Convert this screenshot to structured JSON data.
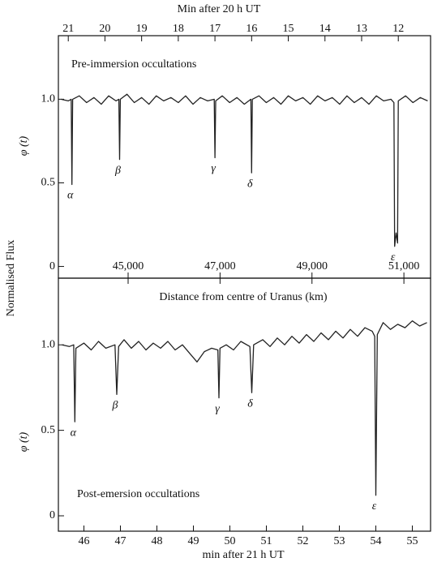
{
  "figure": {
    "ylabel": "Normalised Flux"
  },
  "chart_data": [
    {
      "type": "line",
      "title": "Pre-immersion occultations",
      "xlabel": "Min after 20 h UT",
      "ylabel": "φ (t)",
      "xlim": [
        21.27,
        11.12
      ],
      "xticks": [
        21,
        20,
        19,
        18,
        17,
        16,
        15,
        14,
        13,
        12
      ],
      "x2label": "Distance from centre of Uranus (km)",
      "x2lim": [
        43483,
        51580
      ],
      "x2ticks": [
        {
          "value": 45000,
          "label": "45,000"
        },
        {
          "value": 47000,
          "label": "47,000"
        },
        {
          "value": 49000,
          "label": "49,000"
        },
        {
          "value": 51000,
          "label": "51,000"
        }
      ],
      "ylim": [
        -0.07,
        1.38
      ],
      "yticks": [
        0,
        0.5,
        {
          "value": 1,
          "label": "1.0"
        }
      ],
      "x": [
        21.2,
        21.0,
        20.92,
        20.9,
        20.88,
        20.7,
        20.5,
        20.3,
        20.1,
        19.9,
        19.7,
        19.62,
        19.6,
        19.58,
        19.4,
        19.2,
        19.0,
        18.8,
        18.6,
        18.4,
        18.2,
        18.0,
        17.8,
        17.6,
        17.4,
        17.2,
        17.02,
        17.0,
        16.98,
        16.8,
        16.6,
        16.4,
        16.2,
        16.02,
        16.0,
        15.98,
        15.8,
        15.6,
        15.4,
        15.2,
        15.0,
        14.8,
        14.6,
        14.4,
        14.2,
        14.0,
        13.8,
        13.6,
        13.4,
        13.2,
        13.0,
        12.8,
        12.6,
        12.4,
        12.2,
        12.12,
        12.1,
        12.06,
        12.02,
        12.0,
        11.8,
        11.6,
        11.4,
        11.2
      ],
      "series": [
        {
          "name": "flux",
          "color": "#222222",
          "values": [
            1.0,
            0.99,
            1.0,
            0.49,
            1.0,
            1.02,
            0.98,
            1.01,
            0.97,
            1.02,
            0.99,
            1.0,
            0.64,
            1.0,
            1.03,
            0.98,
            1.01,
            0.97,
            1.02,
            0.99,
            1.01,
            0.98,
            1.02,
            0.97,
            1.01,
            0.99,
            1.0,
            0.65,
            0.99,
            1.02,
            0.98,
            1.01,
            0.97,
            1.0,
            0.56,
            1.0,
            1.02,
            0.98,
            1.01,
            0.97,
            1.02,
            0.99,
            1.01,
            0.97,
            1.02,
            0.99,
            1.01,
            0.97,
            1.02,
            0.98,
            1.01,
            0.97,
            1.02,
            0.99,
            1.0,
            0.98,
            0.12,
            0.2,
            0.14,
            0.99,
            1.02,
            0.98,
            1.01,
            0.99
          ]
        }
      ],
      "annotations": [
        {
          "text": "α",
          "x": 20.9
        },
        {
          "text": "β",
          "x": 19.6
        },
        {
          "text": "γ",
          "x": 17.0
        },
        {
          "text": "δ",
          "x": 16.0
        },
        {
          "text": "ε",
          "x": 12.1
        }
      ]
    },
    {
      "type": "line",
      "title": "Post-emersion occultations",
      "xlabel": "min after 21 h UT",
      "ylabel": "φ (t)",
      "xlim": [
        45.3,
        55.5
      ],
      "xticks": [
        46,
        47,
        48,
        49,
        50,
        51,
        52,
        53,
        54,
        55
      ],
      "ylim": [
        -0.09,
        1.39
      ],
      "yticks": [
        0,
        0.5,
        {
          "value": 1,
          "label": "1.0"
        }
      ],
      "x": [
        45.4,
        45.6,
        45.72,
        45.75,
        45.78,
        46.0,
        46.2,
        46.4,
        46.6,
        46.85,
        46.9,
        46.95,
        47.1,
        47.3,
        47.5,
        47.7,
        47.9,
        48.1,
        48.3,
        48.5,
        48.7,
        48.9,
        49.1,
        49.3,
        49.5,
        49.67,
        49.7,
        49.73,
        49.9,
        50.1,
        50.3,
        50.55,
        50.6,
        50.65,
        50.9,
        51.1,
        51.3,
        51.5,
        51.7,
        51.9,
        52.1,
        52.3,
        52.5,
        52.7,
        52.9,
        53.1,
        53.3,
        53.5,
        53.7,
        53.9,
        53.97,
        54.0,
        54.04,
        54.2,
        54.4,
        54.6,
        54.8,
        55.0,
        55.2,
        55.4
      ],
      "series": [
        {
          "name": "flux",
          "color": "#222222",
          "values": [
            1.0,
            0.99,
            1.0,
            0.55,
            0.98,
            1.01,
            0.97,
            1.02,
            0.98,
            1.0,
            0.71,
            0.99,
            1.03,
            0.98,
            1.02,
            0.97,
            1.01,
            0.98,
            1.02,
            0.97,
            1.0,
            0.95,
            0.9,
            0.96,
            0.98,
            0.97,
            0.69,
            0.98,
            1.0,
            0.97,
            1.02,
            0.99,
            0.72,
            1.0,
            1.03,
            0.99,
            1.04,
            1.0,
            1.05,
            1.01,
            1.06,
            1.02,
            1.07,
            1.03,
            1.08,
            1.04,
            1.09,
            1.05,
            1.1,
            1.08,
            1.05,
            0.12,
            1.06,
            1.13,
            1.09,
            1.12,
            1.1,
            1.14,
            1.11,
            1.13
          ]
        }
      ],
      "annotations": [
        {
          "text": "α",
          "x": 45.75
        },
        {
          "text": "β",
          "x": 46.9
        },
        {
          "text": "γ",
          "x": 49.7
        },
        {
          "text": "δ",
          "x": 50.6
        },
        {
          "text": "ε",
          "x": 54.0
        }
      ]
    }
  ]
}
